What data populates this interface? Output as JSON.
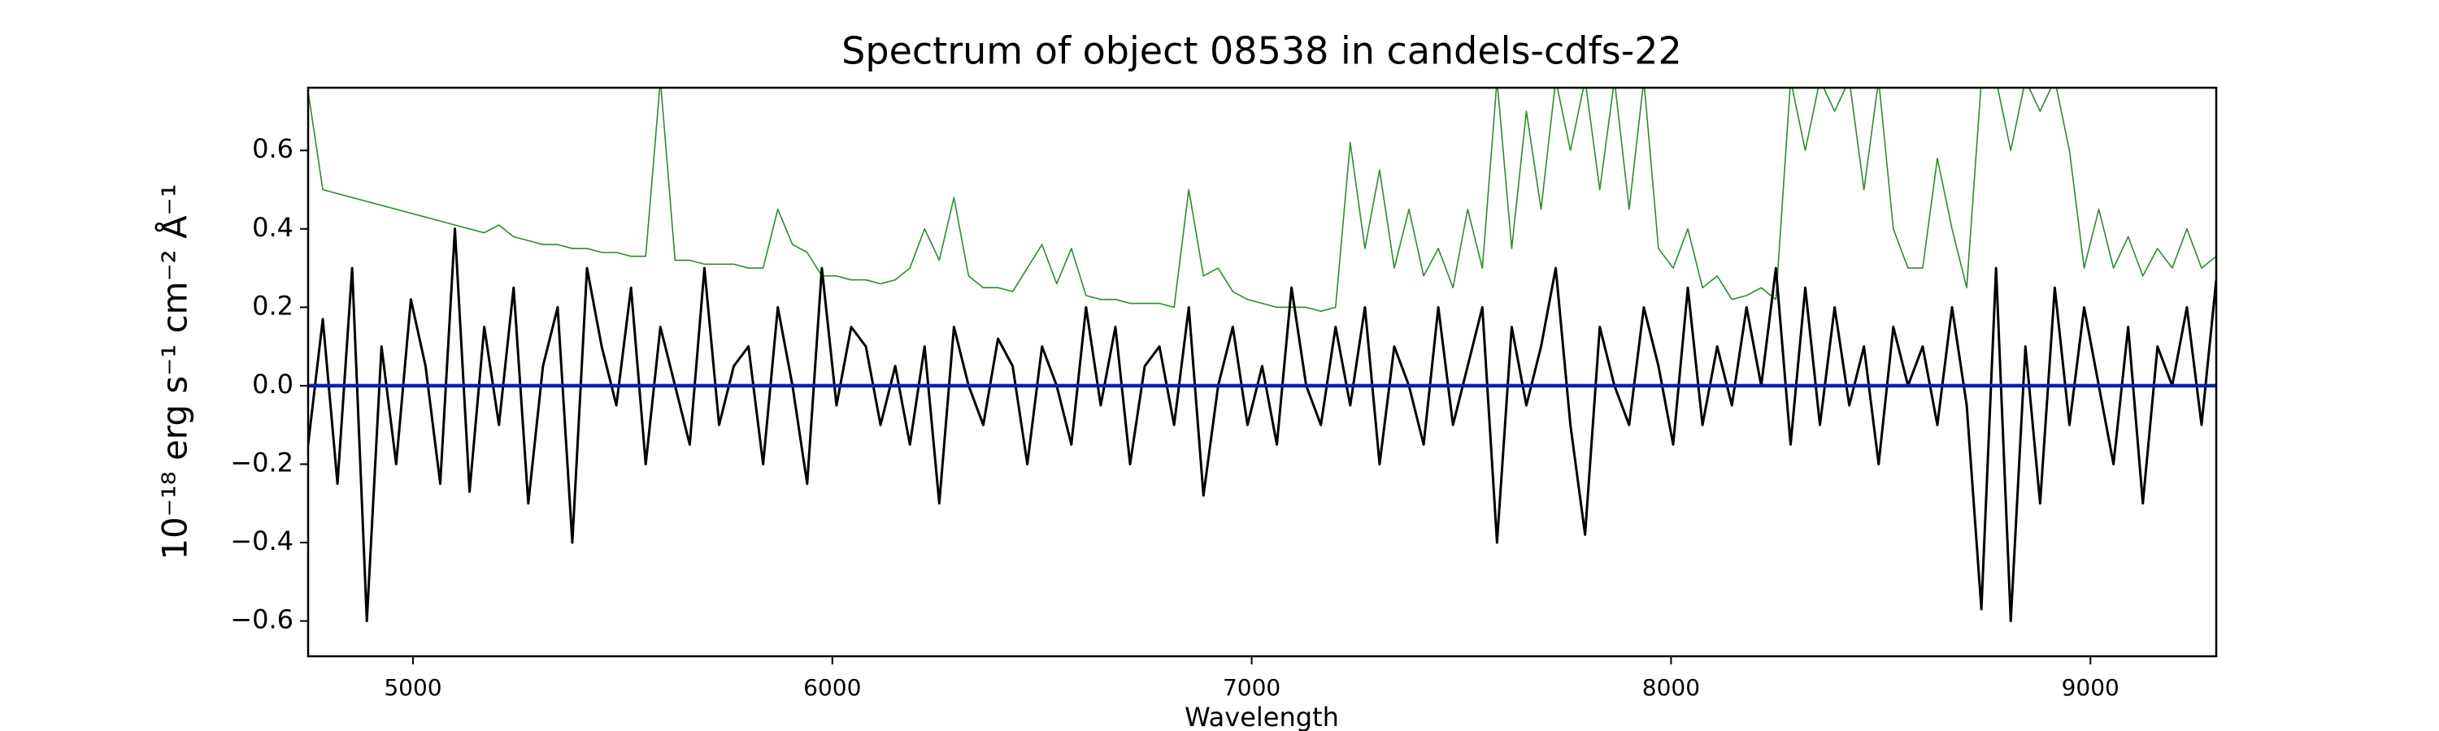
{
  "chart_data": {
    "type": "line",
    "title": "Spectrum of object 08538 in candels-cdfs-22",
    "xlabel": "Wavelength",
    "ylabel": "10⁻¹⁸ erg s⁻¹ cm⁻² Å⁻¹",
    "xlim": [
      4750,
      9300
    ],
    "ylim": [
      -0.69,
      0.76
    ],
    "xticks": [
      5000,
      6000,
      7000,
      8000,
      9000
    ],
    "yticks": [
      {
        "value": -0.6,
        "label": "−0.6"
      },
      {
        "value": -0.4,
        "label": "−0.4"
      },
      {
        "value": -0.2,
        "label": "−0.2"
      },
      {
        "value": 0,
        "label": "0.0"
      },
      0.2,
      0.4,
      0.6
    ],
    "x": [
      4750,
      4785,
      4820,
      4855,
      4890,
      4925,
      4960,
      4995,
      5030,
      5065,
      5100,
      5135,
      5170,
      5205,
      5240,
      5275,
      5310,
      5345,
      5380,
      5415,
      5450,
      5485,
      5520,
      5555,
      5590,
      5625,
      5660,
      5695,
      5730,
      5765,
      5800,
      5835,
      5870,
      5905,
      5940,
      5975,
      6010,
      6045,
      6080,
      6115,
      6150,
      6185,
      6220,
      6255,
      6290,
      6325,
      6360,
      6395,
      6430,
      6465,
      6500,
      6535,
      6570,
      6605,
      6640,
      6675,
      6710,
      6745,
      6780,
      6815,
      6850,
      6885,
      6920,
      6955,
      6990,
      7025,
      7060,
      7095,
      7130,
      7165,
      7200,
      7235,
      7270,
      7305,
      7340,
      7375,
      7410,
      7445,
      7480,
      7515,
      7550,
      7585,
      7620,
      7655,
      7690,
      7725,
      7760,
      7795,
      7830,
      7865,
      7900,
      7935,
      7970,
      8005,
      8040,
      8075,
      8110,
      8145,
      8180,
      8215,
      8250,
      8285,
      8320,
      8355,
      8390,
      8425,
      8460,
      8495,
      8530,
      8565,
      8600,
      8635,
      8670,
      8705,
      8740,
      8775,
      8810,
      8845,
      8880,
      8915,
      8950,
      8985,
      9020,
      9055,
      9090,
      9125,
      9160,
      9195,
      9230,
      9265,
      9300
    ],
    "series": [
      {
        "color": "#2e8b2e",
        "width": 1.6,
        "values": [
          0.75,
          0.5,
          0.49,
          0.48,
          0.47,
          0.46,
          0.45,
          0.44,
          0.43,
          0.42,
          0.41,
          0.4,
          0.39,
          0.41,
          0.38,
          0.37,
          0.36,
          0.36,
          0.35,
          0.35,
          0.34,
          0.34,
          0.33,
          0.33,
          0.78,
          0.32,
          0.32,
          0.31,
          0.31,
          0.31,
          0.3,
          0.3,
          0.45,
          0.36,
          0.34,
          0.28,
          0.28,
          0.27,
          0.27,
          0.26,
          0.27,
          0.3,
          0.4,
          0.32,
          0.48,
          0.28,
          0.25,
          0.25,
          0.24,
          0.3,
          0.36,
          0.26,
          0.35,
          0.23,
          0.22,
          0.22,
          0.21,
          0.21,
          0.21,
          0.2,
          0.5,
          0.28,
          0.3,
          0.24,
          0.22,
          0.21,
          0.2,
          0.2,
          0.2,
          0.19,
          0.2,
          0.62,
          0.35,
          0.55,
          0.3,
          0.45,
          0.28,
          0.35,
          0.25,
          0.45,
          0.3,
          0.78,
          0.35,
          0.7,
          0.45,
          0.78,
          0.6,
          0.78,
          0.5,
          0.78,
          0.45,
          0.78,
          0.35,
          0.3,
          0.4,
          0.25,
          0.28,
          0.22,
          0.23,
          0.25,
          0.22,
          0.78,
          0.6,
          0.78,
          0.7,
          0.78,
          0.5,
          0.78,
          0.4,
          0.3,
          0.3,
          0.58,
          0.4,
          0.25,
          0.78,
          0.78,
          0.6,
          0.78,
          0.7,
          0.78,
          0.6,
          0.3,
          0.45,
          0.3,
          0.38,
          0.28,
          0.35,
          0.3,
          0.4,
          0.3,
          0.33
        ]
      },
      {
        "color": "#000000",
        "width": 3,
        "values": [
          -0.15,
          0.17,
          -0.25,
          0.3,
          -0.6,
          0.1,
          -0.2,
          0.22,
          0.05,
          -0.25,
          0.4,
          -0.27,
          0.15,
          -0.1,
          0.25,
          -0.3,
          0.05,
          0.2,
          -0.4,
          0.3,
          0.1,
          -0.05,
          0.25,
          -0.2,
          0.15,
          0.0,
          -0.15,
          0.3,
          -0.1,
          0.05,
          0.1,
          -0.2,
          0.2,
          0.0,
          -0.25,
          0.3,
          -0.05,
          0.15,
          0.1,
          -0.1,
          0.05,
          -0.15,
          0.1,
          -0.3,
          0.15,
          0.0,
          -0.1,
          0.12,
          0.05,
          -0.2,
          0.1,
          0.0,
          -0.15,
          0.2,
          -0.05,
          0.15,
          -0.2,
          0.05,
          0.1,
          -0.1,
          0.2,
          -0.28,
          0.0,
          0.15,
          -0.1,
          0.05,
          -0.15,
          0.25,
          0.0,
          -0.1,
          0.15,
          -0.05,
          0.2,
          -0.2,
          0.1,
          0.0,
          -0.15,
          0.2,
          -0.1,
          0.05,
          0.2,
          -0.4,
          0.15,
          -0.05,
          0.1,
          0.3,
          -0.1,
          -0.38,
          0.15,
          0.0,
          -0.1,
          0.2,
          0.05,
          -0.15,
          0.25,
          -0.1,
          0.1,
          -0.05,
          0.2,
          0.0,
          0.3,
          -0.15,
          0.25,
          -0.1,
          0.2,
          -0.05,
          0.1,
          -0.2,
          0.15,
          0.0,
          0.1,
          -0.1,
          0.2,
          -0.05,
          -0.57,
          0.3,
          -0.6,
          0.1,
          -0.3,
          0.25,
          -0.1,
          0.2,
          0.0,
          -0.2,
          0.15,
          -0.3,
          0.1,
          0.0,
          0.2,
          -0.1,
          0.27
        ]
      },
      {
        "color": "#0a1fb8",
        "width": 4.5,
        "values": [
          0,
          0,
          0,
          0,
          0,
          0,
          0,
          0,
          0,
          0,
          0,
          0,
          0,
          0,
          0,
          0,
          0,
          0,
          0,
          0,
          0,
          0,
          0,
          0,
          0,
          0,
          0,
          0,
          0,
          0,
          0,
          0,
          0,
          0,
          0,
          0,
          0,
          0,
          0,
          0,
          0,
          0,
          0,
          0,
          0,
          0,
          0,
          0,
          0,
          0,
          0,
          0,
          0,
          0,
          0,
          0,
          0,
          0,
          0,
          0,
          0,
          0,
          0,
          0,
          0,
          0,
          0,
          0,
          0,
          0,
          0,
          0,
          0,
          0,
          0,
          0,
          0,
          0,
          0,
          0,
          0,
          0,
          0,
          0,
          0,
          0,
          0,
          0,
          0,
          0,
          0,
          0,
          0,
          0,
          0,
          0,
          0,
          0,
          0,
          0,
          0,
          0,
          0,
          0,
          0,
          0,
          0,
          0,
          0,
          0,
          0,
          0,
          0,
          0,
          0,
          0,
          0,
          0,
          0,
          0,
          0,
          0,
          0,
          0,
          0,
          0,
          0,
          0,
          0,
          0,
          0
        ]
      }
    ]
  }
}
